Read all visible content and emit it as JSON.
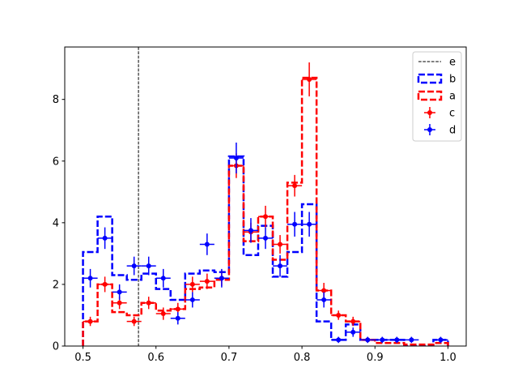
{
  "chart_data": {
    "type": "histogram",
    "xlim": [
      0.475,
      1.025
    ],
    "ylim": [
      0,
      9.7
    ],
    "xticks": [
      0.5,
      0.6,
      0.7,
      0.8,
      0.9,
      1.0
    ],
    "xtick_labels": [
      "0.5",
      "0.6",
      "0.7",
      "0.8",
      "0.9",
      "1.0"
    ],
    "yticks": [
      0,
      2,
      4,
      6,
      8
    ],
    "ytick_labels": [
      "0",
      "2",
      "4",
      "6",
      "8"
    ],
    "bin_edges": [
      0.5,
      0.52,
      0.54,
      0.56,
      0.58,
      0.6,
      0.62,
      0.64,
      0.66,
      0.68,
      0.7,
      0.72,
      0.74,
      0.76,
      0.78,
      0.8,
      0.82,
      0.84,
      0.86,
      0.88,
      0.9,
      0.92,
      0.94,
      0.96,
      0.98,
      1.0
    ],
    "vline": {
      "name": "e",
      "x": 0.576,
      "color": "#000000",
      "style": "dashed"
    },
    "series": [
      {
        "name": "b",
        "kind": "step",
        "color": "#0000ff",
        "values": [
          3.05,
          4.2,
          2.3,
          2.15,
          2.35,
          1.85,
          1.5,
          2.35,
          2.45,
          2.4,
          6.15,
          2.95,
          3.9,
          2.25,
          3.05,
          4.6,
          0.8,
          0.2,
          0.7,
          0.2,
          0.2,
          0.2,
          0.0,
          0.0,
          0.2
        ]
      },
      {
        "name": "a",
        "kind": "step",
        "color": "#ff0000",
        "values": [
          0.8,
          2.0,
          1.1,
          1.0,
          1.4,
          1.15,
          1.2,
          1.85,
          1.9,
          2.15,
          5.85,
          3.4,
          4.2,
          2.8,
          5.3,
          8.7,
          1.8,
          1.0,
          0.8,
          0.2,
          0.1,
          0.1,
          0.05,
          0.05,
          0.1
        ]
      },
      {
        "name": "c",
        "kind": "errorbar",
        "color": "#ff0000",
        "x": [
          0.51,
          0.53,
          0.55,
          0.57,
          0.59,
          0.61,
          0.63,
          0.65,
          0.67,
          0.69,
          0.71,
          0.73,
          0.75,
          0.77,
          0.79,
          0.81,
          0.83,
          0.85,
          0.87,
          0.89
        ],
        "y": [
          0.8,
          2.0,
          1.4,
          0.8,
          1.4,
          1.05,
          1.2,
          2.0,
          2.1,
          2.2,
          5.85,
          3.7,
          4.2,
          3.3,
          5.2,
          8.65,
          1.8,
          1.0,
          0.8,
          0.2
        ],
        "yerr": [
          0.15,
          0.25,
          0.2,
          0.15,
          0.2,
          0.2,
          0.2,
          0.25,
          0.25,
          0.25,
          0.4,
          0.3,
          0.35,
          0.3,
          0.35,
          0.55,
          0.25,
          0.15,
          0.15,
          0.08
        ]
      },
      {
        "name": "d",
        "kind": "errorbar",
        "color": "#0000ff",
        "x": [
          0.51,
          0.53,
          0.55,
          0.57,
          0.59,
          0.61,
          0.63,
          0.65,
          0.67,
          0.69,
          0.71,
          0.73,
          0.75,
          0.77,
          0.79,
          0.81,
          0.83,
          0.85,
          0.87,
          0.89,
          0.91,
          0.93,
          0.95,
          0.99
        ],
        "y": [
          2.2,
          3.5,
          1.75,
          2.6,
          2.6,
          2.2,
          0.9,
          1.5,
          3.3,
          2.2,
          6.1,
          3.75,
          3.5,
          2.6,
          3.95,
          3.95,
          1.5,
          0.2,
          0.45,
          0.2,
          0.2,
          0.2,
          0.2,
          0.2
        ],
        "yerr": [
          0.3,
          0.35,
          0.25,
          0.3,
          0.3,
          0.3,
          0.2,
          0.25,
          0.35,
          0.3,
          0.5,
          0.4,
          0.35,
          0.35,
          0.4,
          0.4,
          0.25,
          0.1,
          0.15,
          0.1,
          0.1,
          0.1,
          0.1,
          0.1
        ]
      }
    ],
    "legend": {
      "placement": "top-right",
      "entries": [
        "e",
        "b",
        "a",
        "c",
        "d"
      ]
    }
  }
}
